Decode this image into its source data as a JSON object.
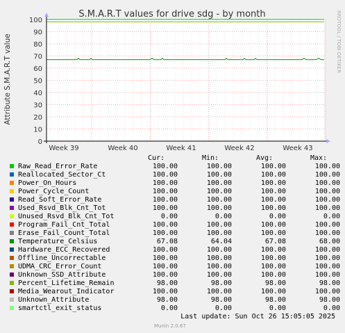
{
  "chart_data": {
    "type": "line",
    "title": "S.M.A.R.T values for drive sdg - by month",
    "ylabel": "Attribute S.M.A.R.T value",
    "watermark": "RRDTOOL / TOBI OETIKER",
    "ylim": [
      0,
      100
    ],
    "yticks": [
      0,
      10,
      20,
      30,
      40,
      50,
      60,
      70,
      80,
      90,
      100
    ],
    "xticks": [
      "Week 39",
      "Week 40",
      "Week 41",
      "Week 42",
      "Week 43"
    ],
    "grid": true,
    "series": [
      {
        "name": "Raw_Read_Error_Rate",
        "color": "#00cc00",
        "cur": "100.00",
        "min": "100.00",
        "avg": "100.00",
        "max": "100.00"
      },
      {
        "name": "Reallocated_Sector_Ct",
        "color": "#0066b3",
        "cur": "100.00",
        "min": "100.00",
        "avg": "100.00",
        "max": "100.00"
      },
      {
        "name": "Power_On_Hours",
        "color": "#ff8000",
        "cur": "100.00",
        "min": "100.00",
        "avg": "100.00",
        "max": "100.00"
      },
      {
        "name": "Power_Cycle_Count",
        "color": "#ffcc00",
        "cur": "100.00",
        "min": "100.00",
        "avg": "100.00",
        "max": "100.00"
      },
      {
        "name": "Read_Soft_Error_Rate",
        "color": "#330099",
        "cur": "100.00",
        "min": "100.00",
        "avg": "100.00",
        "max": "100.00"
      },
      {
        "name": "Used_Rsvd_Blk_Cnt_Tot",
        "color": "#990099",
        "cur": "100.00",
        "min": "100.00",
        "avg": "100.00",
        "max": "100.00"
      },
      {
        "name": "Unused_Rsvd_Blk_Cnt_Tot",
        "color": "#ccff00",
        "cur": "0.00",
        "min": "0.00",
        "avg": "0.00",
        "max": "0.00"
      },
      {
        "name": "Program_Fail_Cnt_Total",
        "color": "#ff0000",
        "cur": "100.00",
        "min": "100.00",
        "avg": "100.00",
        "max": "100.00"
      },
      {
        "name": "Erase_Fail_Count_Total",
        "color": "#808080",
        "cur": "100.00",
        "min": "100.00",
        "avg": "100.00",
        "max": "100.00"
      },
      {
        "name": "Temperature_Celsius",
        "color": "#008f00",
        "cur": "67.08",
        "min": "64.04",
        "avg": "67.08",
        "max": "68.00"
      },
      {
        "name": "Hardware_ECC_Recovered",
        "color": "#00487d",
        "cur": "100.00",
        "min": "100.00",
        "avg": "100.00",
        "max": "100.00"
      },
      {
        "name": "Offline_Uncorrectable",
        "color": "#b35a00",
        "cur": "100.00",
        "min": "100.00",
        "avg": "100.00",
        "max": "100.00"
      },
      {
        "name": "UDMA_CRC_Error_Count",
        "color": "#b38f00",
        "cur": "100.00",
        "min": "100.00",
        "avg": "100.00",
        "max": "100.00"
      },
      {
        "name": "Unknown_SSD_Attribute",
        "color": "#6b006b",
        "cur": "100.00",
        "min": "100.00",
        "avg": "100.00",
        "max": "100.00"
      },
      {
        "name": "Percent_Lifetime_Remain",
        "color": "#8fb300",
        "cur": "98.00",
        "min": "98.00",
        "avg": "98.00",
        "max": "98.00"
      },
      {
        "name": "Media_Wearout_Indicator",
        "color": "#b30000",
        "cur": "100.00",
        "min": "100.00",
        "avg": "100.00",
        "max": "100.00"
      },
      {
        "name": "Unknown_Attribute",
        "color": "#bebebe",
        "cur": "98.00",
        "min": "98.00",
        "avg": "98.00",
        "max": "98.00"
      },
      {
        "name": "smartctl_exit_status",
        "color": "#80ff80",
        "cur": "0.00",
        "min": "0.00",
        "avg": "0.00",
        "max": "0.00"
      }
    ]
  },
  "legend": {
    "headers": {
      "cur": "Cur:",
      "min": "Min:",
      "avg": "Avg:",
      "max": "Max:"
    }
  },
  "footer": {
    "last_update": "Last update: Sun Oct 26 15:05:05 2025",
    "munin": "Munin 2.0.67"
  }
}
